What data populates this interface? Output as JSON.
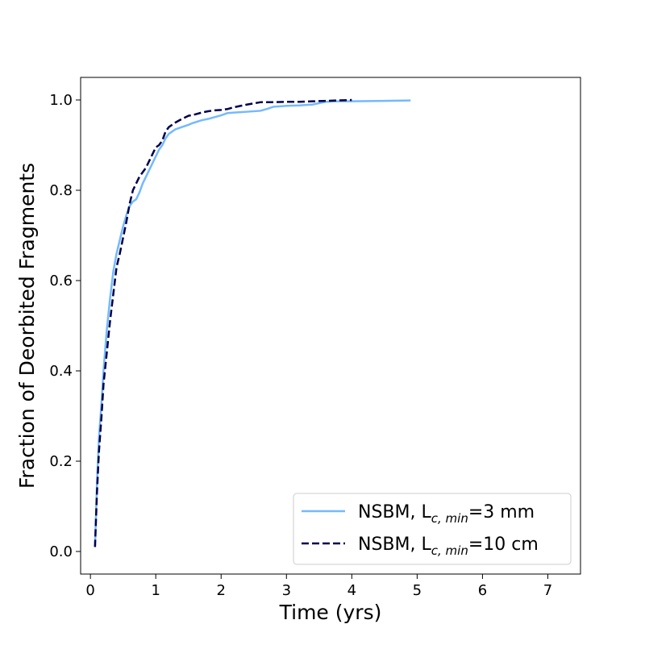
{
  "chart_data": {
    "type": "line",
    "title": "",
    "xlabel": "Time (yrs)",
    "ylabel": "Fraction of Deorbited Fragments",
    "xlim": [
      -0.15,
      7.5
    ],
    "ylim": [
      -0.05,
      1.05
    ],
    "xticks": [
      0,
      1,
      2,
      3,
      4,
      5,
      6,
      7
    ],
    "xtick_labels": [
      "0",
      "1",
      "2",
      "3",
      "4",
      "5",
      "6",
      "7"
    ],
    "yticks": [
      0.0,
      0.2,
      0.4,
      0.6,
      0.8,
      1.0
    ],
    "ytick_labels": [
      "0.0",
      "0.2",
      "0.4",
      "0.6",
      "0.8",
      "1.0"
    ],
    "grid": false,
    "legend_position": "bottom-right",
    "series": [
      {
        "name": "NSBM, L",
        "legend_sub": "c, min",
        "legend_suffix": "=3 mm",
        "color": "#74b9ff",
        "style": "solid",
        "x": [
          0.07,
          0.1,
          0.13,
          0.17,
          0.2,
          0.25,
          0.3,
          0.35,
          0.4,
          0.45,
          0.5,
          0.55,
          0.6,
          0.65,
          0.7,
          0.75,
          0.8,
          0.85,
          0.9,
          0.95,
          1.0,
          1.05,
          1.1,
          1.15,
          1.2,
          1.25,
          1.3,
          1.4,
          1.5,
          1.55,
          1.7,
          1.8,
          1.9,
          2.0,
          2.1,
          2.2,
          2.4,
          2.6,
          2.7,
          2.8,
          2.9,
          3.0,
          3.2,
          3.4,
          3.6,
          3.8,
          4.0,
          4.5,
          4.9
        ],
        "y": [
          0.01,
          0.15,
          0.25,
          0.33,
          0.4,
          0.49,
          0.56,
          0.62,
          0.66,
          0.69,
          0.72,
          0.745,
          0.765,
          0.775,
          0.78,
          0.795,
          0.815,
          0.83,
          0.845,
          0.86,
          0.875,
          0.89,
          0.9,
          0.915,
          0.925,
          0.93,
          0.935,
          0.94,
          0.945,
          0.948,
          0.955,
          0.958,
          0.962,
          0.966,
          0.971,
          0.972,
          0.974,
          0.976,
          0.98,
          0.985,
          0.986,
          0.987,
          0.988,
          0.99,
          0.996,
          0.997,
          0.997,
          0.998,
          0.999
        ]
      },
      {
        "name": "NSBM, L",
        "legend_sub": "c, min",
        "legend_suffix": "=10 cm",
        "color": "#00004d",
        "style": "dashed",
        "x": [
          0.07,
          0.1,
          0.13,
          0.17,
          0.2,
          0.25,
          0.3,
          0.35,
          0.4,
          0.45,
          0.5,
          0.55,
          0.6,
          0.65,
          0.7,
          0.75,
          0.8,
          0.85,
          0.9,
          0.95,
          1.0,
          1.05,
          1.1,
          1.15,
          1.2,
          1.25,
          1.3,
          1.4,
          1.5,
          1.6,
          1.7,
          1.8,
          1.9,
          2.0,
          2.1,
          2.2,
          2.4,
          2.6,
          2.8,
          3.0,
          3.2,
          3.4,
          3.6,
          3.8,
          4.0
        ],
        "y": [
          0.01,
          0.13,
          0.22,
          0.3,
          0.37,
          0.44,
          0.51,
          0.57,
          0.63,
          0.66,
          0.695,
          0.73,
          0.77,
          0.8,
          0.815,
          0.83,
          0.84,
          0.85,
          0.865,
          0.88,
          0.895,
          0.9,
          0.91,
          0.93,
          0.94,
          0.945,
          0.95,
          0.958,
          0.965,
          0.968,
          0.972,
          0.975,
          0.977,
          0.978,
          0.98,
          0.984,
          0.99,
          0.995,
          0.995,
          0.996,
          0.996,
          0.997,
          0.998,
          0.999,
          1.0
        ]
      }
    ]
  }
}
